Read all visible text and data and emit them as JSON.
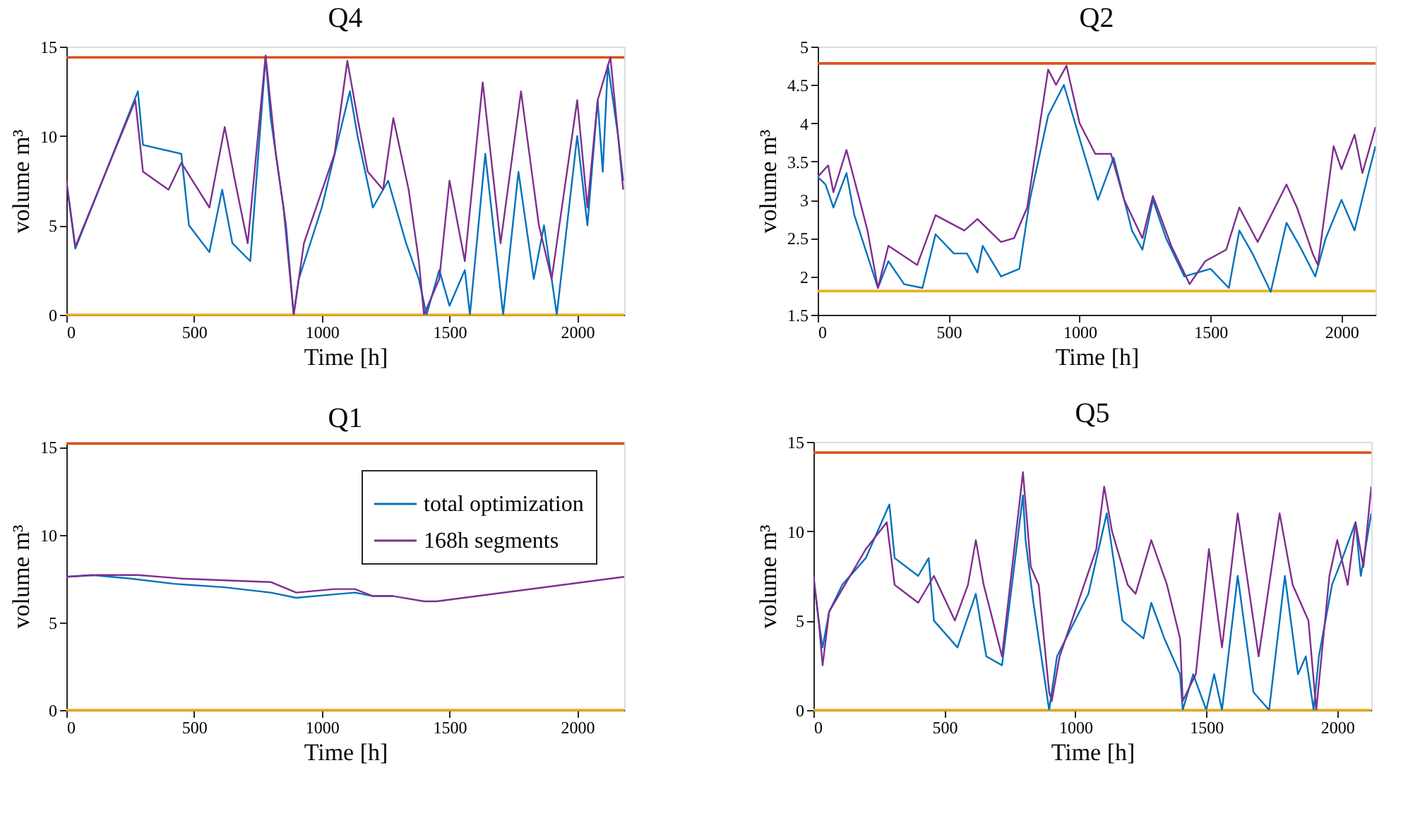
{
  "chart_data": [
    {
      "type": "line",
      "title": "Q4",
      "xlabel": "Time [h]",
      "ylabel": "volume m³",
      "xlim": [
        0,
        2184
      ],
      "xticks": [
        0,
        500,
        1000,
        1500,
        2000
      ],
      "ylim": [
        0,
        15
      ],
      "yticks": [
        0,
        5,
        10,
        15
      ],
      "grid": false,
      "legend": false,
      "series": [
        {
          "color": "#0072bd",
          "x": [
            0,
            35,
            280,
            300,
            450,
            480,
            560,
            610,
            650,
            720,
            780,
            800,
            860,
            890,
            910,
            1000,
            1110,
            1140,
            1200,
            1260,
            1330,
            1380,
            1410,
            1460,
            1500,
            1560,
            1580,
            1640,
            1710,
            1770,
            1830,
            1870,
            1920,
            2000,
            2040,
            2080,
            2100,
            2120,
            2160,
            2180
          ],
          "values": [
            7.5,
            3.7,
            12.5,
            9.5,
            9,
            5,
            3.5,
            7,
            4,
            3,
            14.4,
            11,
            5,
            0,
            2,
            6,
            12.5,
            10,
            6,
            7.5,
            4,
            2,
            0,
            2.5,
            0.5,
            2.5,
            0,
            9,
            0,
            8,
            2,
            5,
            0,
            10,
            5,
            12,
            8,
            14,
            10,
            7.5
          ]
        },
        {
          "color": "#7e2f8e",
          "x": [
            0,
            35,
            270,
            300,
            400,
            450,
            560,
            620,
            660,
            710,
            780,
            820,
            850,
            890,
            930,
            1050,
            1100,
            1140,
            1180,
            1240,
            1280,
            1340,
            1380,
            1400,
            1460,
            1500,
            1560,
            1630,
            1700,
            1780,
            1850,
            1900,
            1950,
            2000,
            2040,
            2080,
            2130,
            2160,
            2180
          ],
          "values": [
            7.5,
            3.8,
            12,
            8,
            7,
            8.5,
            6,
            10.5,
            7.5,
            4,
            14.5,
            9,
            6,
            0,
            4,
            9,
            14.2,
            11,
            8,
            7,
            11,
            7,
            3,
            0,
            2,
            7.5,
            3,
            13,
            4,
            12.5,
            5,
            2,
            7,
            12,
            6,
            12,
            14.4,
            10,
            7
          ]
        }
      ],
      "ref_lines": [
        {
          "axis": "y",
          "value": 14.4,
          "color": "#d95319"
        },
        {
          "axis": "y",
          "value": 0,
          "color": "#edb120"
        }
      ]
    },
    {
      "type": "line",
      "title": "Q2",
      "xlabel": "Time [h]",
      "ylabel": "volume m³",
      "xlim": [
        0,
        2130
      ],
      "xticks": [
        0,
        500,
        1000,
        1500,
        2000
      ],
      "ylim": [
        1.5,
        5
      ],
      "yticks": [
        1.5,
        2,
        2.5,
        3,
        3.5,
        4,
        4.5,
        5
      ],
      "grid": false,
      "legend": false,
      "series": [
        {
          "color": "#0072bd",
          "x": [
            0,
            30,
            60,
            110,
            140,
            230,
            270,
            330,
            400,
            450,
            520,
            570,
            610,
            630,
            700,
            770,
            810,
            880,
            940,
            1000,
            1070,
            1130,
            1200,
            1240,
            1280,
            1330,
            1400,
            1500,
            1570,
            1610,
            1660,
            1730,
            1790,
            1840,
            1900,
            1940,
            2000,
            2050,
            2100,
            2130
          ],
          "values": [
            3.3,
            3.2,
            2.9,
            3.35,
            2.8,
            1.85,
            2.2,
            1.9,
            1.85,
            2.55,
            2.3,
            2.3,
            2.05,
            2.4,
            2.0,
            2.1,
            3.0,
            4.1,
            4.5,
            3.8,
            3.0,
            3.55,
            2.6,
            2.35,
            3.0,
            2.5,
            2.0,
            2.1,
            1.85,
            2.6,
            2.3,
            1.8,
            2.7,
            2.4,
            2.0,
            2.5,
            3.0,
            2.6,
            3.3,
            3.7
          ]
        },
        {
          "color": "#7e2f8e",
          "x": [
            0,
            40,
            60,
            110,
            160,
            190,
            230,
            270,
            380,
            450,
            560,
            610,
            700,
            750,
            800,
            880,
            910,
            950,
            1000,
            1060,
            1120,
            1170,
            1240,
            1280,
            1350,
            1420,
            1480,
            1560,
            1610,
            1680,
            1790,
            1830,
            1890,
            1910,
            1970,
            2000,
            2050,
            2080,
            2130
          ],
          "values": [
            3.3,
            3.45,
            3.1,
            3.65,
            3.0,
            2.6,
            1.85,
            2.4,
            2.15,
            2.8,
            2.6,
            2.75,
            2.45,
            2.5,
            2.9,
            4.7,
            4.5,
            4.75,
            4.0,
            3.6,
            3.6,
            3.0,
            2.5,
            3.05,
            2.4,
            1.9,
            2.2,
            2.35,
            2.9,
            2.45,
            3.2,
            2.9,
            2.3,
            2.15,
            3.7,
            3.4,
            3.85,
            3.35,
            3.95
          ]
        }
      ],
      "ref_lines": [
        {
          "axis": "y",
          "value": 4.78,
          "color": "#d95319"
        },
        {
          "axis": "y",
          "value": 1.81,
          "color": "#edb120"
        }
      ]
    },
    {
      "type": "line",
      "title": "Q1",
      "xlabel": "Time [h]",
      "ylabel": "volume m³",
      "xlim": [
        0,
        2184
      ],
      "xticks": [
        0,
        500,
        1000,
        1500,
        2000
      ],
      "ylim": [
        0,
        15.3
      ],
      "yticks": [
        0,
        5,
        10,
        15
      ],
      "grid": false,
      "legend": "top right",
      "series": [
        {
          "name": "total optimization",
          "color": "#0072bd",
          "x": [
            0,
            100,
            250,
            420,
            620,
            800,
            900,
            1050,
            1130,
            1200,
            1280
          ],
          "values": [
            7.6,
            7.7,
            7.5,
            7.2,
            7.0,
            6.7,
            6.4,
            6.6,
            6.7,
            6.5,
            6.5
          ]
        },
        {
          "name": "168h segments",
          "color": "#7e2f8e",
          "x": [
            0,
            120,
            280,
            450,
            620,
            800,
            900,
            1050,
            1130,
            1200,
            1280,
            1400,
            1450,
            2184
          ],
          "values": [
            7.6,
            7.7,
            7.7,
            7.5,
            7.4,
            7.3,
            6.7,
            6.9,
            6.9,
            6.5,
            6.5,
            6.2,
            6.2,
            7.6
          ]
        }
      ],
      "ref_lines": [
        {
          "axis": "y",
          "value": 15.2,
          "color": "#d95319"
        },
        {
          "axis": "y",
          "value": 0,
          "color": "#edb120"
        }
      ]
    },
    {
      "type": "line",
      "title": "Q5",
      "xlabel": "Time [h]",
      "ylabel": "volume m³",
      "xlim": [
        0,
        2130
      ],
      "xticks": [
        0,
        500,
        1000,
        1500,
        2000
      ],
      "ylim": [
        0,
        15
      ],
      "yticks": [
        0,
        5,
        10,
        15
      ],
      "grid": false,
      "legend": false,
      "series": [
        {
          "color": "#0072bd",
          "x": [
            0,
            20,
            35,
            60,
            110,
            200,
            290,
            310,
            400,
            440,
            460,
            550,
            620,
            660,
            720,
            800,
            810,
            840,
            880,
            900,
            930,
            1050,
            1120,
            1150,
            1180,
            1260,
            1290,
            1340,
            1400,
            1410,
            1450,
            1500,
            1530,
            1560,
            1620,
            1680,
            1740,
            1800,
            1850,
            1880,
            1910,
            1930,
            1980,
            2020,
            2070,
            2090,
            2130
          ],
          "values": [
            7.5,
            5,
            3.5,
            5.5,
            7,
            8.5,
            11.5,
            8.5,
            7.5,
            8.5,
            5,
            3.5,
            6.5,
            3,
            2.5,
            12,
            9.5,
            6,
            2,
            0,
            3,
            6.5,
            11,
            8,
            5,
            4,
            6,
            4,
            2,
            0,
            2,
            0,
            2,
            0,
            7.5,
            1,
            0,
            7.5,
            2,
            3,
            0,
            3,
            7,
            8.5,
            10.5,
            7.5,
            11
          ]
        },
        {
          "color": "#7e2f8e",
          "x": [
            0,
            20,
            35,
            60,
            120,
            200,
            280,
            310,
            400,
            460,
            540,
            590,
            620,
            650,
            720,
            800,
            830,
            860,
            900,
            910,
            940,
            1080,
            1110,
            1140,
            1200,
            1230,
            1290,
            1350,
            1400,
            1410,
            1460,
            1510,
            1560,
            1620,
            1650,
            1700,
            1780,
            1830,
            1890,
            1920,
            1970,
            2000,
            2040,
            2070,
            2100,
            2130
          ],
          "values": [
            7.5,
            5,
            2.5,
            5.5,
            7,
            9,
            10.5,
            7,
            6,
            7.5,
            5,
            7,
            9.5,
            7,
            3,
            13.3,
            8,
            7,
            1,
            0.5,
            3,
            9,
            12.5,
            10,
            7,
            6.5,
            9.5,
            7,
            4,
            0.5,
            2,
            9,
            3.5,
            11,
            8,
            3,
            11,
            7,
            5,
            0,
            7.5,
            9.5,
            7,
            10.5,
            8,
            12.5
          ]
        }
      ],
      "ref_lines": [
        {
          "axis": "y",
          "value": 14.4,
          "color": "#d95319"
        },
        {
          "axis": "y",
          "value": 0,
          "color": "#edb120"
        }
      ]
    }
  ]
}
